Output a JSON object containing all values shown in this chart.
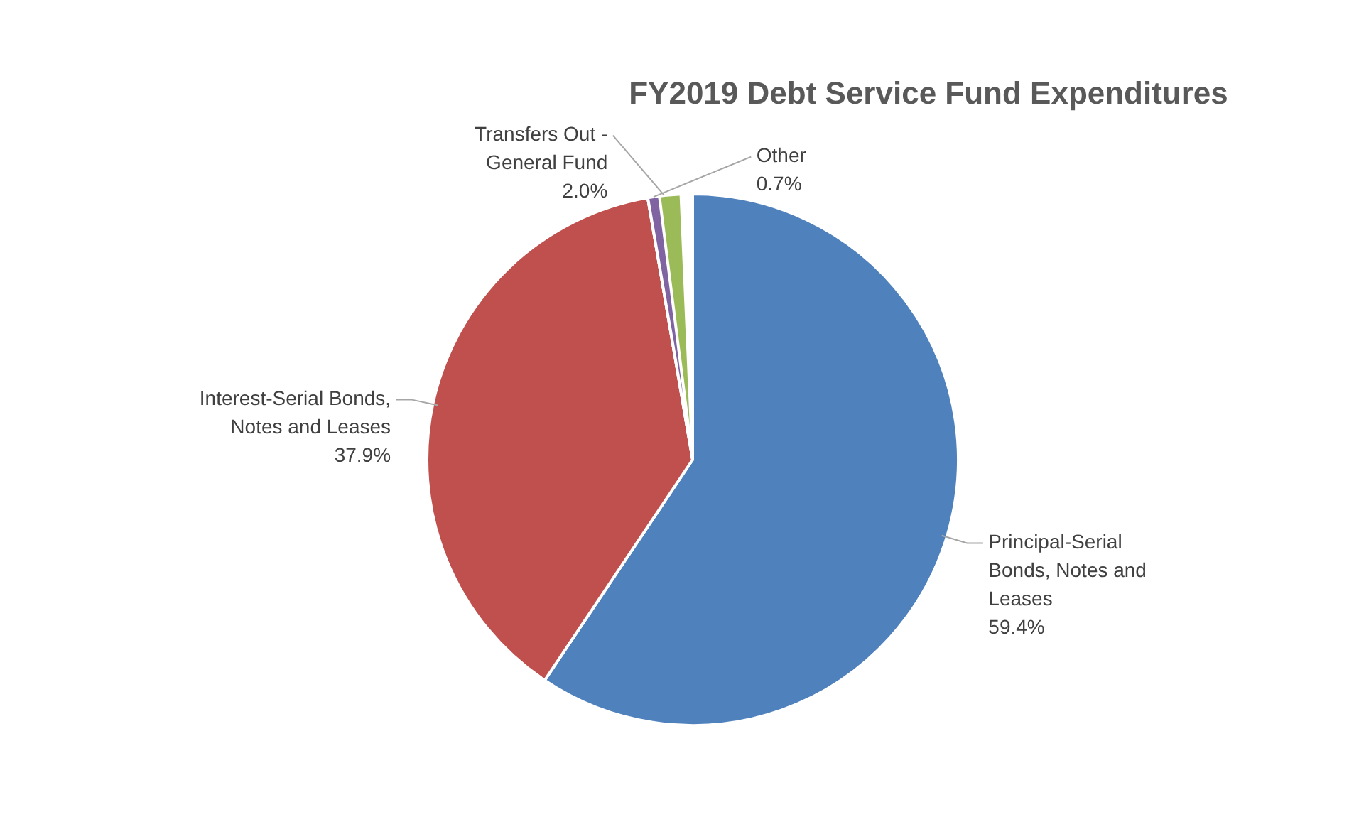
{
  "chart_data": {
    "type": "pie",
    "title": "FY2019 Debt Service Fund Expenditures",
    "categories": [
      "Principal-Serial\nBonds, Notes and\nLeases",
      "Interest-Serial Bonds,\nNotes and Leases",
      "Transfers Out -\nGeneral Fund",
      "Other"
    ],
    "values": [
      59.4,
      37.9,
      2.0,
      0.7
    ],
    "colors": [
      "#4f81bd",
      "#c0504d",
      "#9bbb59",
      "#8064a2"
    ],
    "data_labels": true,
    "value_labels": [
      "59.4%",
      "37.9%",
      "2.0%",
      "0.7%"
    ]
  }
}
